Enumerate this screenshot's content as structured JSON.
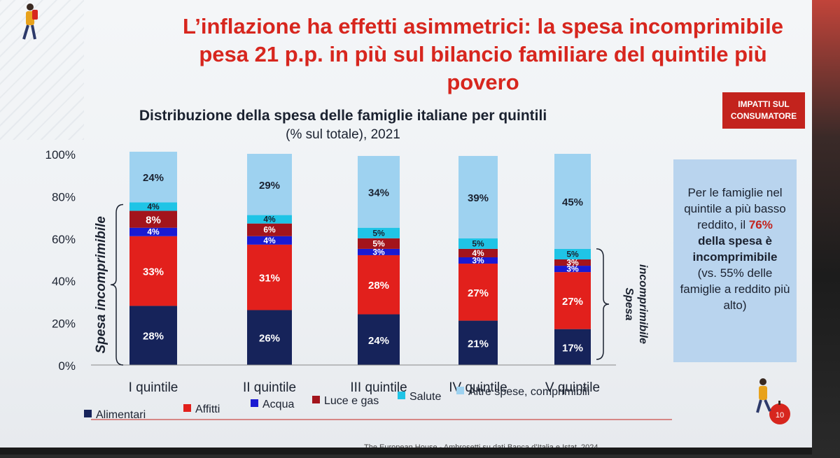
{
  "title_lines": [
    "L’inflazione ha effetti asimmetrici: la spesa incomprimibile",
    "pesa 21 p.p. in più sul bilancio familiare del quintile più povero"
  ],
  "badge_lines": [
    "IMPATTI SUL",
    "CONSUMATORE"
  ],
  "note": {
    "part1": "Per le famiglie nel quintile a più basso reddito, il",
    "part2": " 76%",
    "part3": "della spesa è incomprimibile",
    "part4": "(vs. 55% delle famiglie a reddito più alto)"
  },
  "source_text": "The European House - Ambrosetti su dati Banca d’Italia e Istat, 2024",
  "page_number": "10",
  "colors": {
    "Alimentari": "#16235a",
    "Affitti": "#e2201c",
    "Acqua": "#1a1ad2",
    "Luce e gas": "#a3141c",
    "Salute": "#1fc4e6",
    "Altre spese, comprimibili": "#9ed2f0",
    "title": "#d7261e"
  },
  "chart_data": {
    "type": "bar",
    "stacked": true,
    "title": "Distribuzione della spesa delle famiglie italiane per quintili",
    "subtitle": "(% sul totale), 2021",
    "categories": [
      "I quintile",
      "II quintile",
      "III quintile",
      "IV quintile",
      "V quintile"
    ],
    "yticks": [
      "0%",
      "20%",
      "40%",
      "60%",
      "80%",
      "100%"
    ],
    "ylim": [
      0,
      100
    ],
    "series": [
      {
        "name": "Alimentari",
        "values": [
          28,
          26,
          24,
          21,
          17
        ],
        "labels": [
          "28%",
          "26%",
          "24%",
          "21%",
          "17%"
        ]
      },
      {
        "name": "Affitti",
        "values": [
          33,
          31,
          28,
          27,
          27
        ],
        "labels": [
          "33%",
          "31%",
          "28%",
          "27%",
          "27%"
        ]
      },
      {
        "name": "Acqua",
        "values": [
          4,
          4,
          3,
          3,
          3
        ],
        "labels": [
          "4%",
          "4%",
          "3%",
          "3%",
          "3%"
        ]
      },
      {
        "name": "Luce e gas",
        "values": [
          8,
          6,
          5,
          4,
          3
        ],
        "labels": [
          "8%",
          "6%",
          "5%",
          "4%",
          "3%"
        ]
      },
      {
        "name": "Salute",
        "values": [
          4,
          4,
          5,
          5,
          5
        ],
        "labels": [
          "4%",
          "4%",
          "5%",
          "5%",
          "5%"
        ]
      },
      {
        "name": "Altre spese, comprimibili",
        "values": [
          24,
          29,
          34,
          39,
          45
        ],
        "labels": [
          "24%",
          "29%",
          "34%",
          "39%",
          "45%"
        ]
      }
    ],
    "legend": [
      "Alimentari",
      "Affitti",
      "Acqua",
      "Luce e gas",
      "Salute",
      "Altre spese, comprimibili"
    ],
    "legend_position": "bottom",
    "brace_left_label": "Spesa incomprimibile",
    "brace_right_label": [
      "Spesa",
      "incomprimibile"
    ]
  }
}
